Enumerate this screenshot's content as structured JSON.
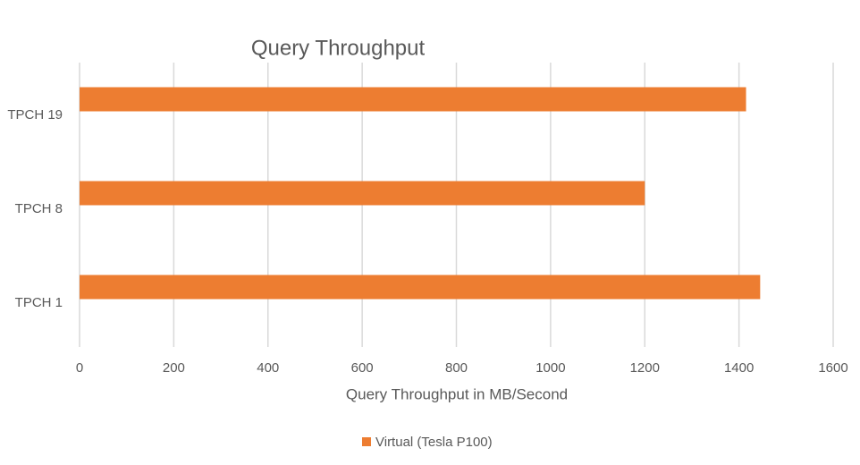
{
  "chart_data": {
    "type": "bar",
    "orientation": "horizontal",
    "title": "Query Throughput",
    "x_label": "Query Throughput in MB/Second",
    "categories": [
      "TPCH 19",
      "TPCH 8",
      "TPCH 1"
    ],
    "series": [
      {
        "name": "Virtual (Tesla P100)",
        "color": "#ed7d31",
        "values": [
          1415,
          1200,
          1445
        ]
      }
    ],
    "xlim": [
      0,
      1600
    ],
    "xticks": [
      0,
      200,
      400,
      600,
      800,
      1000,
      1200,
      1400,
      1600
    ],
    "grid": true,
    "legend": "bottom"
  }
}
